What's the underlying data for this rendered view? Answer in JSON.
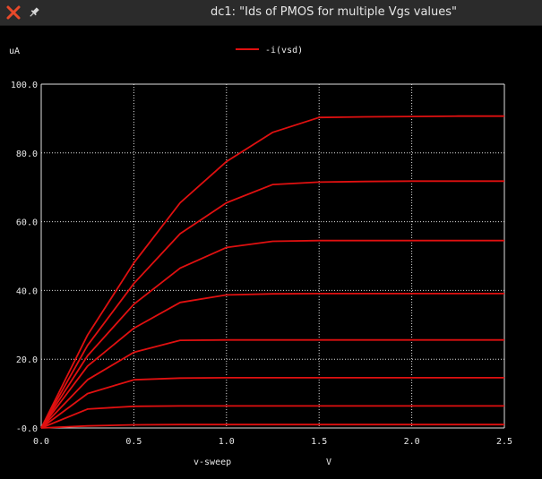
{
  "window": {
    "title": "dc1: \"Ids of PMOS for multiple Vgs values\""
  },
  "colors": {
    "trace": "#e01010",
    "grid": "#e0e0e0",
    "background": "#000000",
    "text": "#e8e8e8"
  },
  "chart_data": {
    "type": "line",
    "y_unit_label": "uA",
    "xlabel": "v-sweep",
    "x_unit_label": "V",
    "legend": [
      {
        "name": "-i(vsd)",
        "color": "#e01010"
      }
    ],
    "legend_placement": "top-center",
    "grid": true,
    "xlim": [
      0,
      2.5
    ],
    "ylim": [
      0,
      100
    ],
    "x_ticks": [
      "0.0",
      "0.5",
      "1.0",
      "1.5",
      "2.0",
      "2.5"
    ],
    "y_ticks": [
      "-0.0",
      "20.0",
      "40.0",
      "60.0",
      "80.0",
      "100.0"
    ],
    "x": [
      0,
      0.25,
      0.5,
      0.75,
      1.0,
      1.25,
      1.5,
      1.75,
      2.0,
      2.25,
      2.5
    ],
    "series": [
      {
        "values": [
          0,
          0.6,
          0.9,
          1.0,
          1.0,
          1.0,
          1.0,
          1.0,
          1.0,
          1.0,
          1.0
        ]
      },
      {
        "values": [
          0,
          5.5,
          6.3,
          6.4,
          6.4,
          6.4,
          6.4,
          6.4,
          6.4,
          6.4,
          6.4
        ]
      },
      {
        "values": [
          0,
          10,
          14,
          14.5,
          14.6,
          14.6,
          14.6,
          14.6,
          14.6,
          14.6,
          14.6
        ]
      },
      {
        "values": [
          0,
          14,
          22,
          25.5,
          25.6,
          25.6,
          25.6,
          25.6,
          25.6,
          25.6,
          25.6
        ]
      },
      {
        "values": [
          0,
          18,
          29,
          36.5,
          38.7,
          39.0,
          39.1,
          39.1,
          39.1,
          39.1,
          39.1
        ]
      },
      {
        "values": [
          0,
          21,
          36,
          46.5,
          52.5,
          54.3,
          54.5,
          54.5,
          54.5,
          54.5,
          54.5
        ]
      },
      {
        "values": [
          0,
          24,
          42,
          56.5,
          65.5,
          70.8,
          71.5,
          71.7,
          71.8,
          71.8,
          71.8
        ]
      },
      {
        "values": [
          0,
          27,
          48,
          65.5,
          77.5,
          86,
          90.3,
          90.5,
          90.6,
          90.7,
          90.7
        ]
      }
    ]
  }
}
